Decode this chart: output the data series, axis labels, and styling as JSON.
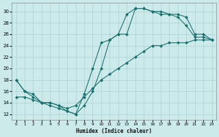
{
  "xlabel": "Humidex (Indice chaleur)",
  "xlim": [
    -0.5,
    23.5
  ],
  "ylim": [
    11,
    31.5
  ],
  "xticks": [
    0,
    1,
    2,
    3,
    4,
    5,
    6,
    7,
    8,
    9,
    10,
    11,
    12,
    13,
    14,
    15,
    16,
    17,
    18,
    19,
    20,
    21,
    22,
    23
  ],
  "yticks": [
    12,
    14,
    16,
    18,
    20,
    22,
    24,
    26,
    28,
    30
  ],
  "bg_color": "#cceaea",
  "grid_color": "#b0d4d4",
  "line_color": "#1a7070",
  "line1_x": [
    0,
    1,
    2,
    3,
    4,
    5,
    6,
    7,
    8,
    9,
    10,
    11,
    12,
    13,
    14,
    15,
    16,
    17,
    18,
    19,
    20,
    21,
    22,
    23
  ],
  "line1_y": [
    18,
    16,
    15.5,
    14,
    13.5,
    13,
    12.5,
    12,
    13.5,
    16,
    20,
    25,
    26,
    29.5,
    30.5,
    30.5,
    30,
    30,
    29.5,
    29.5,
    29,
    26,
    26,
    25
  ],
  "line2_x": [
    0,
    1,
    2,
    3,
    4,
    5,
    6,
    7,
    8,
    9,
    10,
    11,
    12,
    13,
    14,
    15,
    16,
    17,
    18,
    19,
    20,
    21,
    22,
    23
  ],
  "line2_y": [
    18,
    16,
    15,
    14,
    14,
    13.5,
    12.5,
    12,
    15.5,
    20,
    24.5,
    25,
    26,
    26,
    30.5,
    30.5,
    30,
    29.5,
    29.5,
    29,
    27.5,
    25.5,
    25.5,
    25
  ],
  "line3_x": [
    0,
    1,
    2,
    3,
    4,
    5,
    6,
    7,
    8,
    9,
    10,
    11,
    12,
    13,
    14,
    15,
    16,
    17,
    18,
    19,
    20,
    21,
    22,
    23
  ],
  "line3_y": [
    15,
    15,
    14.5,
    14,
    14,
    13.5,
    13,
    13.5,
    15,
    16.5,
    18,
    19,
    20,
    21,
    22,
    23,
    24,
    24,
    24.5,
    24.5,
    24.5,
    25,
    25,
    25
  ]
}
